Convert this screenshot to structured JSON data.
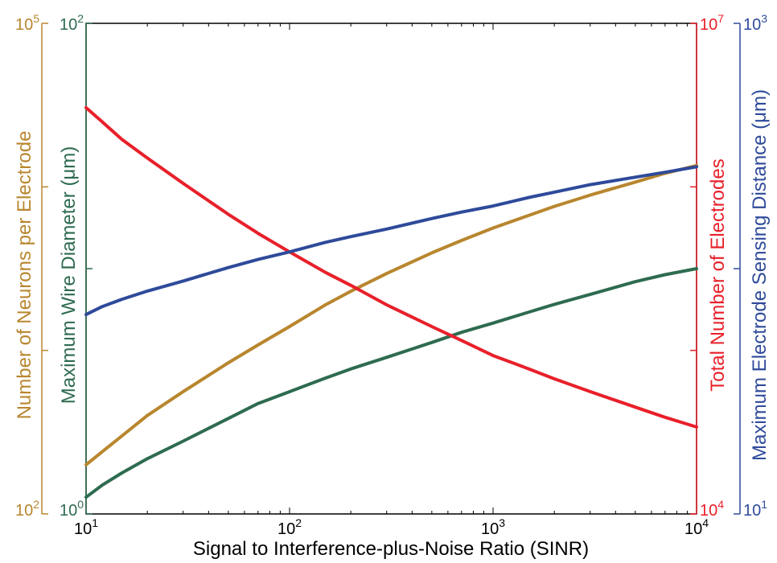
{
  "chart_data": {
    "type": "line",
    "xlabel": "Signal to Interference-plus-Noise Ratio (SINR)",
    "x_scale": "log",
    "xlim": [
      10,
      10000
    ],
    "x_ticks": [
      {
        "base": "10",
        "exp": "1"
      },
      {
        "base": "10",
        "exp": "2"
      },
      {
        "base": "10",
        "exp": "3"
      },
      {
        "base": "10",
        "exp": "4"
      }
    ],
    "axes": [
      {
        "id": "neurons",
        "label": "Number of Neurons per Electrode",
        "color": "#b8862e",
        "scale": "log",
        "ylim": [
          100,
          100000
        ],
        "tick_min": {
          "base": "10",
          "exp": "2"
        },
        "tick_max": {
          "base": "10",
          "exp": "5"
        }
      },
      {
        "id": "wire",
        "label": "Maximum Wire Diameter (μm)",
        "color": "#2e6b4f",
        "scale": "log",
        "ylim": [
          1,
          100
        ],
        "tick_min": {
          "base": "10",
          "exp": "0"
        },
        "tick_max": {
          "base": "10",
          "exp": "2"
        }
      },
      {
        "id": "electrodes",
        "label": "Total Number of Electrodes",
        "color": "#e8202a",
        "scale": "log",
        "ylim": [
          10000,
          10000000
        ],
        "tick_min": {
          "base": "10",
          "exp": "4"
        },
        "tick_max": {
          "base": "10",
          "exp": "7"
        }
      },
      {
        "id": "sensing",
        "label": "Maximum Electrode Sensing Distance (μm)",
        "color": "#2e4a9a",
        "scale": "log",
        "ylim": [
          10,
          1000
        ],
        "tick_min": {
          "base": "10",
          "exp": "1"
        },
        "tick_max": {
          "base": "10",
          "exp": "3"
        }
      }
    ],
    "series": [
      {
        "axis": "neurons",
        "color": "#b8862e",
        "x": [
          10,
          12,
          15,
          20,
          30,
          50,
          70,
          100,
          150,
          200,
          300,
          500,
          700,
          1000,
          1500,
          2000,
          3000,
          5000,
          7000,
          10000
        ],
        "y": [
          200,
          240,
          300,
          400,
          560,
          840,
          1080,
          1400,
          1900,
          2300,
          2950,
          3950,
          4700,
          5600,
          6700,
          7600,
          8900,
          10700,
          12100,
          13500
        ]
      },
      {
        "axis": "wire",
        "color": "#2e6b4f",
        "x": [
          10,
          12,
          15,
          20,
          30,
          50,
          70,
          100,
          150,
          200,
          300,
          500,
          700,
          1000,
          1500,
          2000,
          3000,
          5000,
          7000,
          10000
        ],
        "y": [
          1.17,
          1.31,
          1.47,
          1.68,
          1.98,
          2.45,
          2.82,
          3.15,
          3.58,
          3.9,
          4.35,
          5.0,
          5.5,
          6.0,
          6.65,
          7.15,
          7.85,
          8.85,
          9.45,
          10.0
        ]
      },
      {
        "axis": "electrodes",
        "color": "#e8202a",
        "x": [
          10,
          12,
          15,
          20,
          30,
          50,
          70,
          100,
          150,
          200,
          300,
          500,
          700,
          1000,
          1500,
          2000,
          3000,
          5000,
          7000,
          10000
        ],
        "y": [
          3050000,
          2500000,
          1950000,
          1500000,
          1050000,
          680000,
          520000,
          400000,
          300000,
          250000,
          190000,
          140000,
          115000,
          93000,
          77000,
          67000,
          56000,
          45000,
          39000,
          34000
        ]
      },
      {
        "axis": "sensing",
        "color": "#2e4a9a",
        "x": [
          10,
          12,
          15,
          20,
          30,
          50,
          70,
          100,
          150,
          200,
          300,
          500,
          700,
          1000,
          1500,
          2000,
          3000,
          5000,
          7000,
          10000
        ],
        "y": [
          65,
          70,
          75,
          81,
          89,
          101,
          109,
          117,
          128,
          135,
          145,
          160,
          170,
          180,
          195,
          205,
          220,
          236,
          247,
          260
        ]
      }
    ]
  }
}
